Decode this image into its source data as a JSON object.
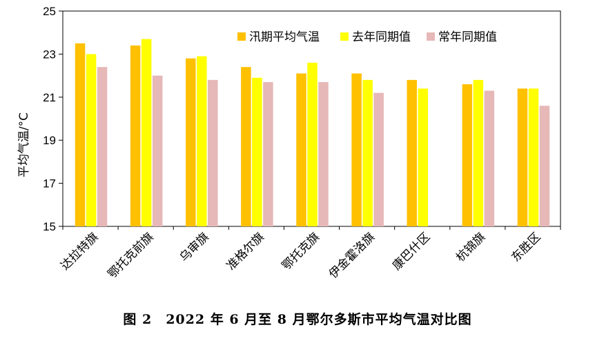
{
  "chart_data": {
    "type": "bar",
    "categories": [
      "达拉特旗",
      "鄂托克前旗",
      "乌审旗",
      "准格尔旗",
      "鄂托克旗",
      "伊金霍洛旗",
      "康巴什区",
      "杭锦旗",
      "东胜区"
    ],
    "series": [
      {
        "name": "汛期平均气温",
        "color": "#FFC000",
        "values": [
          23.5,
          23.4,
          22.8,
          22.4,
          22.1,
          22.1,
          21.8,
          21.6,
          21.4
        ]
      },
      {
        "name": "去年同期值",
        "color": "#FFFF00",
        "values": [
          23.0,
          23.7,
          22.9,
          21.9,
          22.6,
          21.8,
          21.4,
          21.8,
          21.4
        ]
      },
      {
        "name": "常年同期值",
        "color": "#E6B8B7",
        "values": [
          22.4,
          22.0,
          21.8,
          21.7,
          21.7,
          21.2,
          null,
          21.3,
          20.6
        ]
      }
    ],
    "ylabel": "平均气温/°C",
    "ylim": [
      15,
      25
    ],
    "yticks": [
      "15",
      "17",
      "19",
      "21",
      "23",
      "25"
    ],
    "legend_position": "top-right",
    "grid": false
  },
  "caption": "图 2　2022 年 6 月至 8 月鄂尔多斯市平均气温对比图"
}
